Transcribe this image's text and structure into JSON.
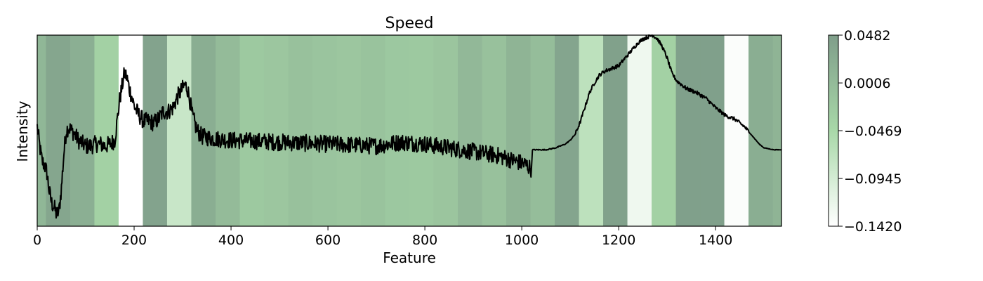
{
  "chart_data": {
    "type": "line",
    "title": "Speed",
    "xlabel": "Feature",
    "ylabel": "Intensity",
    "xlim": [
      0,
      1536
    ],
    "x_ticks": [
      0,
      200,
      400,
      600,
      800,
      1000,
      1200,
      1400
    ],
    "y_ticks_shown": false,
    "grid": false,
    "legend": "none",
    "line_color": "#000000",
    "background_bands": {
      "band_width": 50,
      "edges": [
        0,
        18,
        68,
        118,
        168,
        218,
        268,
        318,
        368,
        418,
        468,
        518,
        568,
        618,
        668,
        718,
        768,
        818,
        868,
        918,
        968,
        1018,
        1068,
        1118,
        1168,
        1218,
        1268,
        1318,
        1368,
        1418,
        1468,
        1518,
        1536
      ],
      "values": [
        0.008,
        0.035,
        0.02,
        -0.035,
        -0.142,
        0.04,
        -0.082,
        0.022,
        0.0,
        -0.022,
        -0.018,
        -0.01,
        -0.014,
        -0.018,
        -0.012,
        -0.02,
        -0.022,
        -0.016,
        0.005,
        -0.01,
        0.012,
        -0.002,
        0.036,
        -0.07,
        0.044,
        -0.125,
        -0.035,
        0.045,
        0.045,
        -0.138,
        0.022,
        0.012
      ]
    },
    "signal": {
      "x": [
        0,
        5,
        10,
        15,
        20,
        25,
        30,
        35,
        40,
        45,
        50,
        55,
        60,
        65,
        70,
        75,
        80,
        85,
        90,
        100,
        110,
        120,
        130,
        140,
        150,
        160,
        165,
        170,
        175,
        180,
        185,
        190,
        195,
        200,
        210,
        220,
        230,
        240,
        250,
        260,
        270,
        280,
        290,
        300,
        305,
        310,
        315,
        320,
        330,
        340,
        360,
        400,
        500,
        600,
        700,
        750,
        800,
        850,
        900,
        950,
        1000,
        1010,
        1015,
        1020,
        1022,
        1030,
        1050,
        1070,
        1080,
        1090,
        1100,
        1110,
        1120,
        1130,
        1140,
        1150,
        1160,
        1170,
        1180,
        1190,
        1200,
        1210,
        1220,
        1230,
        1240,
        1250,
        1260,
        1270,
        1280,
        1290,
        1300,
        1310,
        1320,
        1330,
        1340,
        1360,
        1380,
        1400,
        1420,
        1440,
        1460,
        1470,
        1480,
        1490,
        1500,
        1520,
        1536
      ],
      "y": [
        0.52,
        0.42,
        0.34,
        0.32,
        0.28,
        0.18,
        0.12,
        0.1,
        0.06,
        0.08,
        0.2,
        0.38,
        0.5,
        0.52,
        0.5,
        0.49,
        0.47,
        0.45,
        0.44,
        0.42,
        0.42,
        0.43,
        0.43,
        0.42,
        0.43,
        0.45,
        0.55,
        0.66,
        0.73,
        0.8,
        0.78,
        0.72,
        0.68,
        0.63,
        0.58,
        0.55,
        0.55,
        0.54,
        0.56,
        0.6,
        0.6,
        0.62,
        0.68,
        0.72,
        0.74,
        0.72,
        0.66,
        0.58,
        0.5,
        0.47,
        0.46,
        0.45,
        0.44,
        0.43,
        0.42,
        0.44,
        0.43,
        0.41,
        0.39,
        0.37,
        0.33,
        0.32,
        0.31,
        0.3,
        0.4,
        0.4,
        0.4,
        0.41,
        0.42,
        0.43,
        0.45,
        0.48,
        0.54,
        0.62,
        0.7,
        0.75,
        0.79,
        0.81,
        0.82,
        0.83,
        0.84,
        0.87,
        0.9,
        0.93,
        0.96,
        0.98,
        0.99,
        1.0,
        0.98,
        0.94,
        0.88,
        0.8,
        0.76,
        0.74,
        0.72,
        0.7,
        0.67,
        0.62,
        0.58,
        0.56,
        0.52,
        0.49,
        0.46,
        0.43,
        0.41,
        0.4,
        0.4
      ]
    },
    "colorbar": {
      "min": -0.142,
      "max": 0.0482,
      "ticks": [
        0.0482,
        0.0006,
        -0.0469,
        -0.0945,
        -0.142
      ],
      "tick_labels": [
        "0.0482",
        "0.0006",
        "−0.0469",
        "−0.0945",
        "−0.1420"
      ],
      "color_low": "#ffffff",
      "color_mid": "#a8d8a8",
      "color_high": "#7f9e8a"
    }
  }
}
